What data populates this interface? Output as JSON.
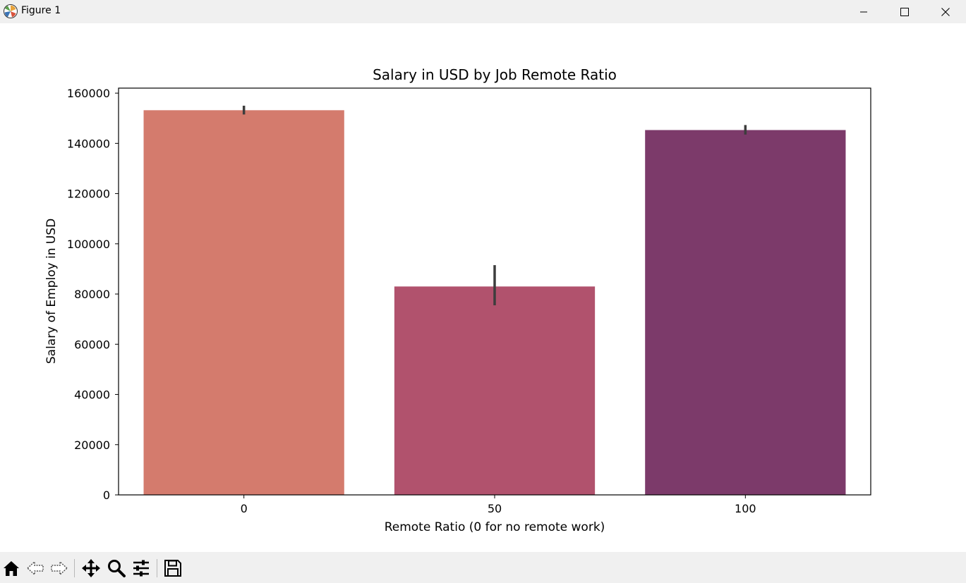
{
  "window": {
    "title": "Figure 1"
  },
  "titlebar_buttons": [
    "minimize-icon",
    "maximize-icon",
    "close-icon"
  ],
  "toolbar": {
    "buttons": [
      "home-icon",
      "back-arrow-icon",
      "forward-arrow-icon",
      "pan-move-icon",
      "zoom-magnifier-icon",
      "configure-subplots-icon",
      "save-floppy-icon"
    ]
  },
  "chart_data": {
    "type": "bar",
    "title": "Salary in USD by Job Remote Ratio",
    "xlabel": "Remote Ratio (0 for no remote work)",
    "ylabel": "Salary of Employ in USD",
    "categories": [
      "0",
      "50",
      "100"
    ],
    "values": [
      153200,
      83000,
      145300
    ],
    "error_bars": [
      {
        "low": 151500,
        "high": 155000
      },
      {
        "low": 75500,
        "high": 91500
      },
      {
        "low": 143500,
        "high": 147300
      }
    ],
    "colors": [
      "#d47b6d",
      "#b1526d",
      "#7c3a6a"
    ],
    "ylim": [
      0,
      162000
    ],
    "yticks": [
      0,
      20000,
      40000,
      60000,
      80000,
      100000,
      120000,
      140000,
      160000
    ],
    "ytick_labels": [
      "0",
      "20000",
      "40000",
      "60000",
      "80000",
      "100000",
      "120000",
      "140000",
      "160000"
    ],
    "grid": false,
    "legend": "none"
  }
}
